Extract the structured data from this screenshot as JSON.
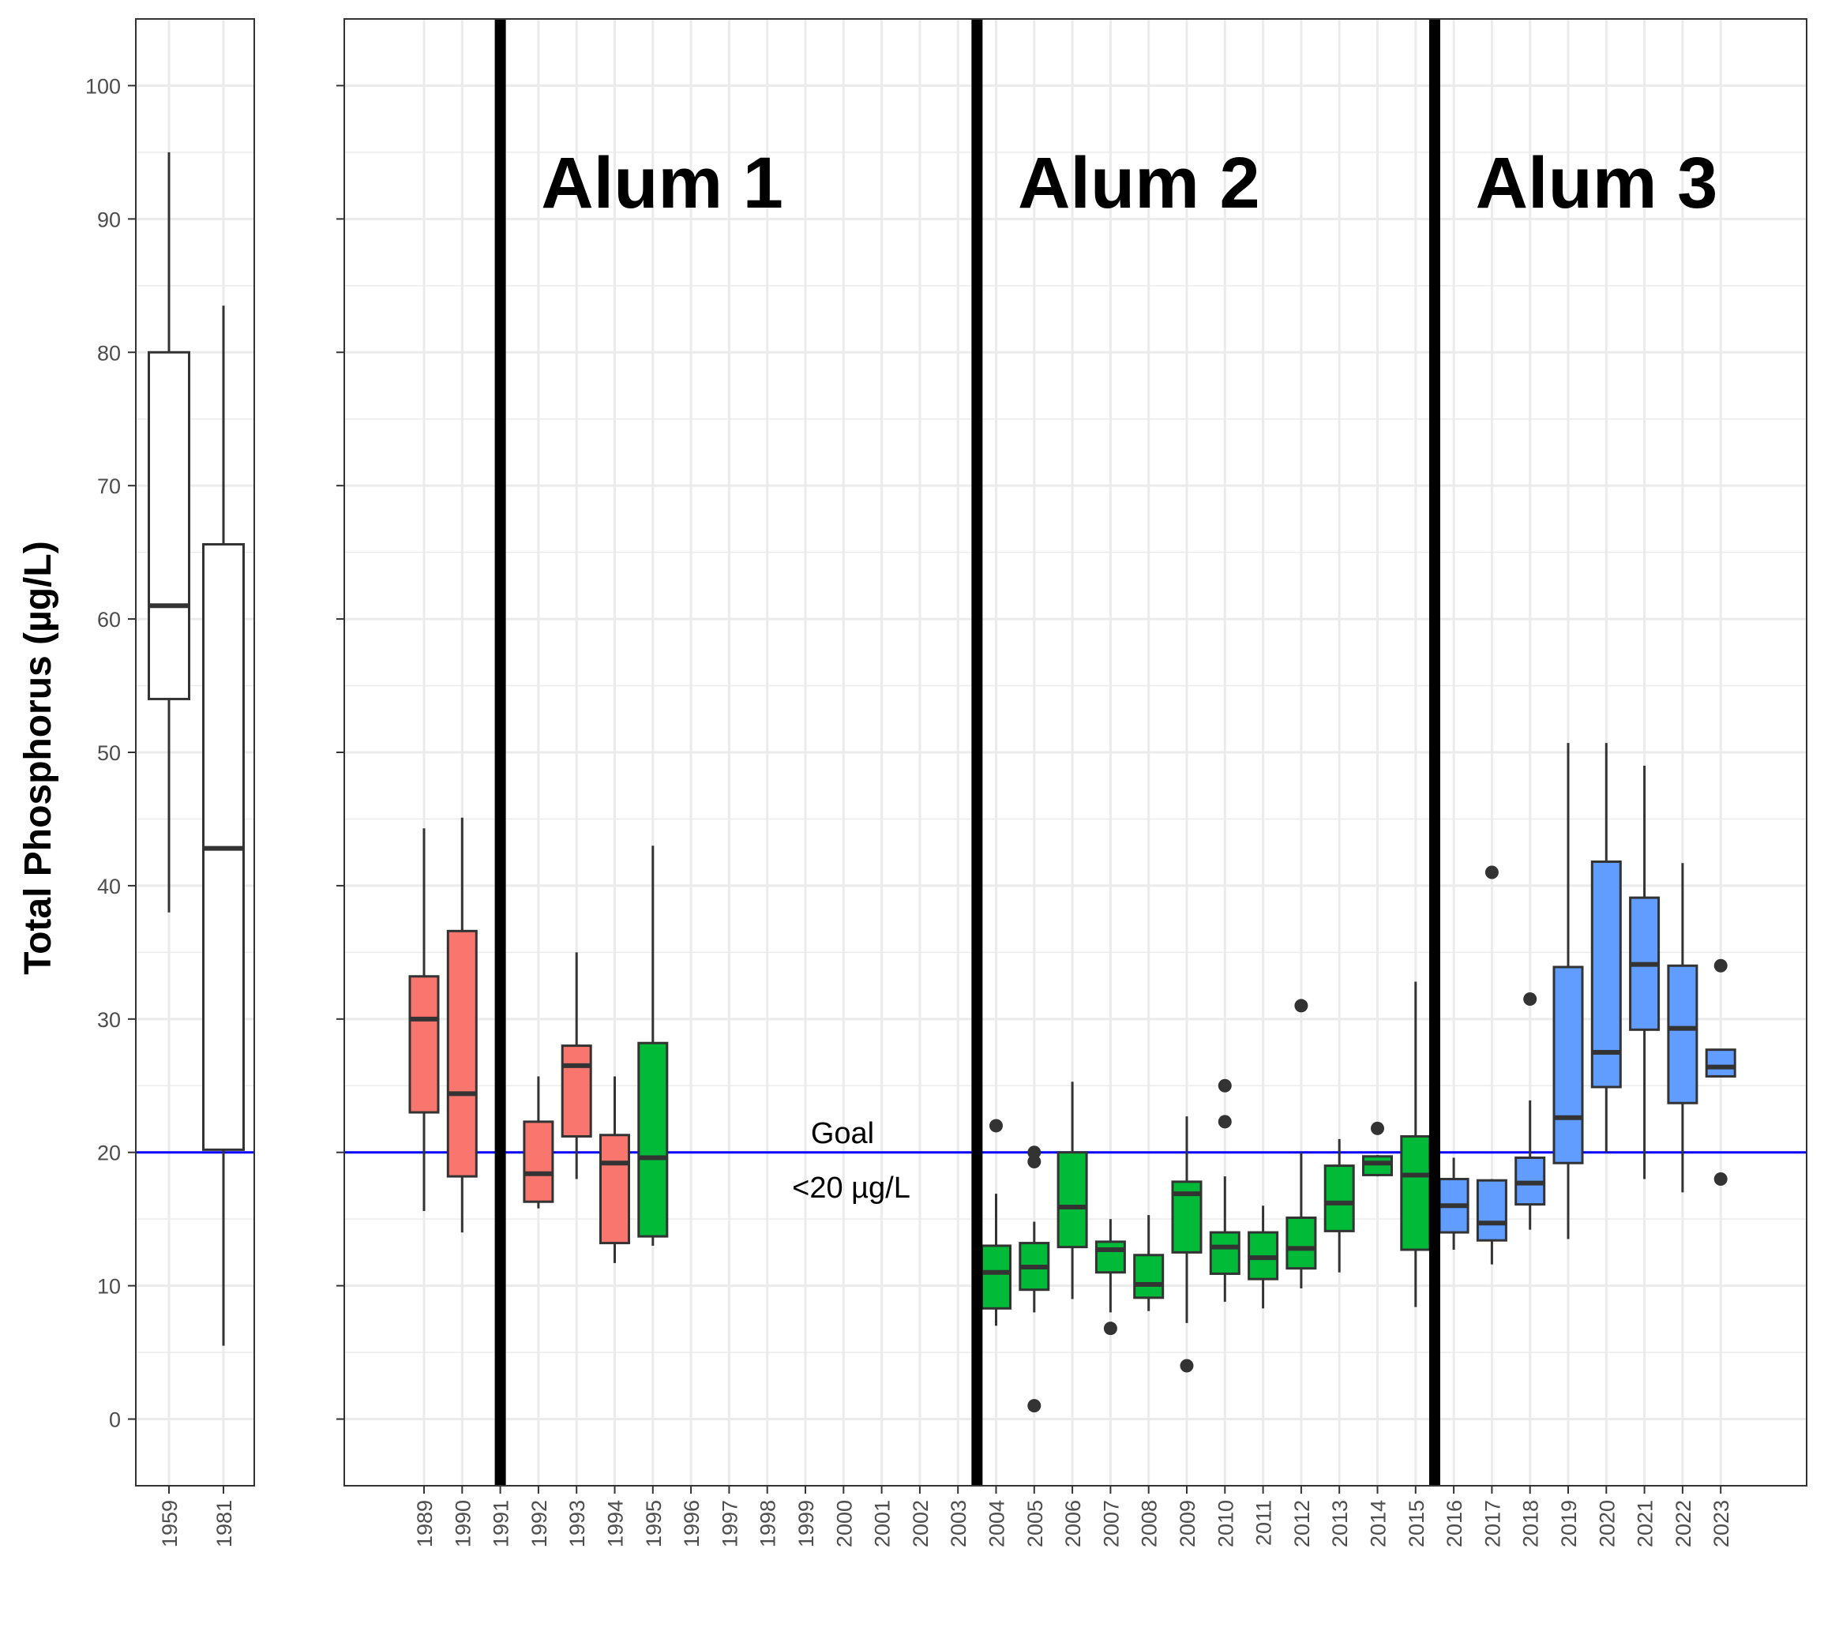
{
  "chart_data": {
    "type": "box",
    "ylabel": "Total Phosphorus (µg/L)",
    "ylim": [
      -5,
      105
    ],
    "yticks": [
      0,
      10,
      20,
      30,
      40,
      50,
      60,
      70,
      80,
      90,
      100
    ],
    "grid": true,
    "legend": "none",
    "colors": {
      "pre": "#ffffff",
      "red": "#f8766d",
      "green": "#00ba38",
      "blue": "#619cff",
      "goal_line": "#0000ff",
      "treatment_line": "#000000",
      "grid": "#ebebeb",
      "box_stroke": "#333333"
    },
    "goal": {
      "value": 20,
      "label_line1": "Goal",
      "label_line2": "<20 µg/L"
    },
    "treatments": [
      {
        "label": "Alum 1",
        "year": "1991"
      },
      {
        "label": "Alum 2",
        "year": "2003.5"
      },
      {
        "label": "Alum 3",
        "year": "2015.5"
      }
    ],
    "left_panel": {
      "categories": [
        "1959",
        "1981"
      ],
      "boxes": [
        {
          "x": "1959",
          "lower": 38,
          "q1": 54,
          "median": 61,
          "q3": 80,
          "upper": 95,
          "outliers": [],
          "color": "pre"
        },
        {
          "x": "1981",
          "lower": 5.5,
          "q1": 20.2,
          "median": 42.8,
          "q3": 65.6,
          "upper": 83.5,
          "outliers": [],
          "color": "pre"
        }
      ]
    },
    "right_panel": {
      "categories": [
        "1989",
        "1990",
        "1991",
        "1992",
        "1993",
        "1994",
        "1995",
        "1996",
        "1997",
        "1998",
        "1999",
        "2000",
        "2001",
        "2002",
        "2003",
        "2004",
        "2005",
        "2006",
        "2007",
        "2008",
        "2009",
        "2010",
        "2011",
        "2012",
        "2013",
        "2014",
        "2015",
        "2016",
        "2017",
        "2018",
        "2019",
        "2020",
        "2021",
        "2022",
        "2023"
      ],
      "boxes": [
        {
          "x": "1989",
          "lower": 15.6,
          "q1": 23.0,
          "median": 30.0,
          "q3": 33.2,
          "upper": 44.3,
          "outliers": [],
          "color": "red"
        },
        {
          "x": "1990",
          "lower": 14.0,
          "q1": 18.2,
          "median": 24.4,
          "q3": 36.6,
          "upper": 45.1,
          "outliers": [],
          "color": "red"
        },
        {
          "x": "1992",
          "lower": 15.8,
          "q1": 16.3,
          "median": 18.4,
          "q3": 22.3,
          "upper": 25.7,
          "outliers": [],
          "color": "red"
        },
        {
          "x": "1993",
          "lower": 18.0,
          "q1": 21.2,
          "median": 26.5,
          "q3": 28.0,
          "upper": 35.0,
          "outliers": [],
          "color": "red"
        },
        {
          "x": "1994",
          "lower": 11.7,
          "q1": 13.2,
          "median": 19.2,
          "q3": 21.3,
          "upper": 25.7,
          "outliers": [],
          "color": "red"
        },
        {
          "x": "1995",
          "lower": 13.0,
          "q1": 13.7,
          "median": 19.6,
          "q3": 28.2,
          "upper": 43.0,
          "outliers": [],
          "color": "green"
        },
        {
          "x": "2004",
          "lower": 7.0,
          "q1": 8.3,
          "median": 11.0,
          "q3": 13.0,
          "upper": 16.9,
          "outliers": [
            22.0
          ],
          "color": "green"
        },
        {
          "x": "2005",
          "lower": 8.0,
          "q1": 9.7,
          "median": 11.4,
          "q3": 13.2,
          "upper": 14.8,
          "outliers": [
            1.0,
            19.3,
            20.0
          ],
          "color": "green"
        },
        {
          "x": "2006",
          "lower": 9.0,
          "q1": 12.9,
          "median": 15.9,
          "q3": 20.0,
          "upper": 25.3,
          "outliers": [],
          "color": "green"
        },
        {
          "x": "2007",
          "lower": 8.0,
          "q1": 11.0,
          "median": 12.7,
          "q3": 13.3,
          "upper": 15.0,
          "outliers": [
            6.8
          ],
          "color": "green"
        },
        {
          "x": "2008",
          "lower": 8.1,
          "q1": 9.1,
          "median": 10.1,
          "q3": 12.3,
          "upper": 15.3,
          "outliers": [],
          "color": "green"
        },
        {
          "x": "2009",
          "lower": 7.2,
          "q1": 12.5,
          "median": 16.9,
          "q3": 17.8,
          "upper": 22.7,
          "outliers": [
            4.0
          ],
          "color": "green"
        },
        {
          "x": "2010",
          "lower": 8.8,
          "q1": 10.9,
          "median": 12.9,
          "q3": 14.0,
          "upper": 18.2,
          "outliers": [
            22.3,
            25.0
          ],
          "color": "green"
        },
        {
          "x": "2011",
          "lower": 8.3,
          "q1": 10.5,
          "median": 12.1,
          "q3": 14.0,
          "upper": 16.0,
          "outliers": [],
          "color": "green"
        },
        {
          "x": "2012",
          "lower": 9.8,
          "q1": 11.3,
          "median": 12.8,
          "q3": 15.1,
          "upper": 20.0,
          "outliers": [
            31.0
          ],
          "color": "green"
        },
        {
          "x": "2013",
          "lower": 11.0,
          "q1": 14.1,
          "median": 16.2,
          "q3": 19.0,
          "upper": 21.0,
          "outliers": [],
          "color": "green"
        },
        {
          "x": "2014",
          "lower": 18.2,
          "q1": 18.3,
          "median": 19.2,
          "q3": 19.7,
          "upper": 19.8,
          "outliers": [
            21.8
          ],
          "color": "green"
        },
        {
          "x": "2015",
          "lower": 8.4,
          "q1": 12.7,
          "median": 18.3,
          "q3": 21.2,
          "upper": 32.8,
          "outliers": [],
          "color": "green"
        },
        {
          "x": "2016",
          "lower": 12.7,
          "q1": 14.0,
          "median": 16.0,
          "q3": 18.0,
          "upper": 19.6,
          "outliers": [],
          "color": "blue"
        },
        {
          "x": "2017",
          "lower": 11.6,
          "q1": 13.4,
          "median": 14.7,
          "q3": 17.9,
          "upper": 18.0,
          "outliers": [
            41.0
          ],
          "color": "blue"
        },
        {
          "x": "2018",
          "lower": 14.2,
          "q1": 16.1,
          "median": 17.7,
          "q3": 19.6,
          "upper": 23.9,
          "outliers": [
            31.5
          ],
          "color": "blue"
        },
        {
          "x": "2019",
          "lower": 13.5,
          "q1": 19.2,
          "median": 22.6,
          "q3": 33.9,
          "upper": 50.7,
          "outliers": [],
          "color": "blue"
        },
        {
          "x": "2020",
          "lower": 20.0,
          "q1": 24.9,
          "median": 27.5,
          "q3": 41.8,
          "upper": 50.7,
          "outliers": [],
          "color": "blue"
        },
        {
          "x": "2021",
          "lower": 18.0,
          "q1": 29.2,
          "median": 34.1,
          "q3": 39.1,
          "upper": 49.0,
          "outliers": [],
          "color": "blue"
        },
        {
          "x": "2022",
          "lower": 17.0,
          "q1": 23.7,
          "median": 29.3,
          "q3": 34.0,
          "upper": 41.7,
          "outliers": [],
          "color": "blue"
        },
        {
          "x": "2023",
          "lower": 25.7,
          "q1": 25.7,
          "median": 26.4,
          "q3": 27.7,
          "upper": 27.7,
          "outliers": [
            18.0,
            34.0
          ],
          "color": "blue"
        }
      ]
    }
  }
}
